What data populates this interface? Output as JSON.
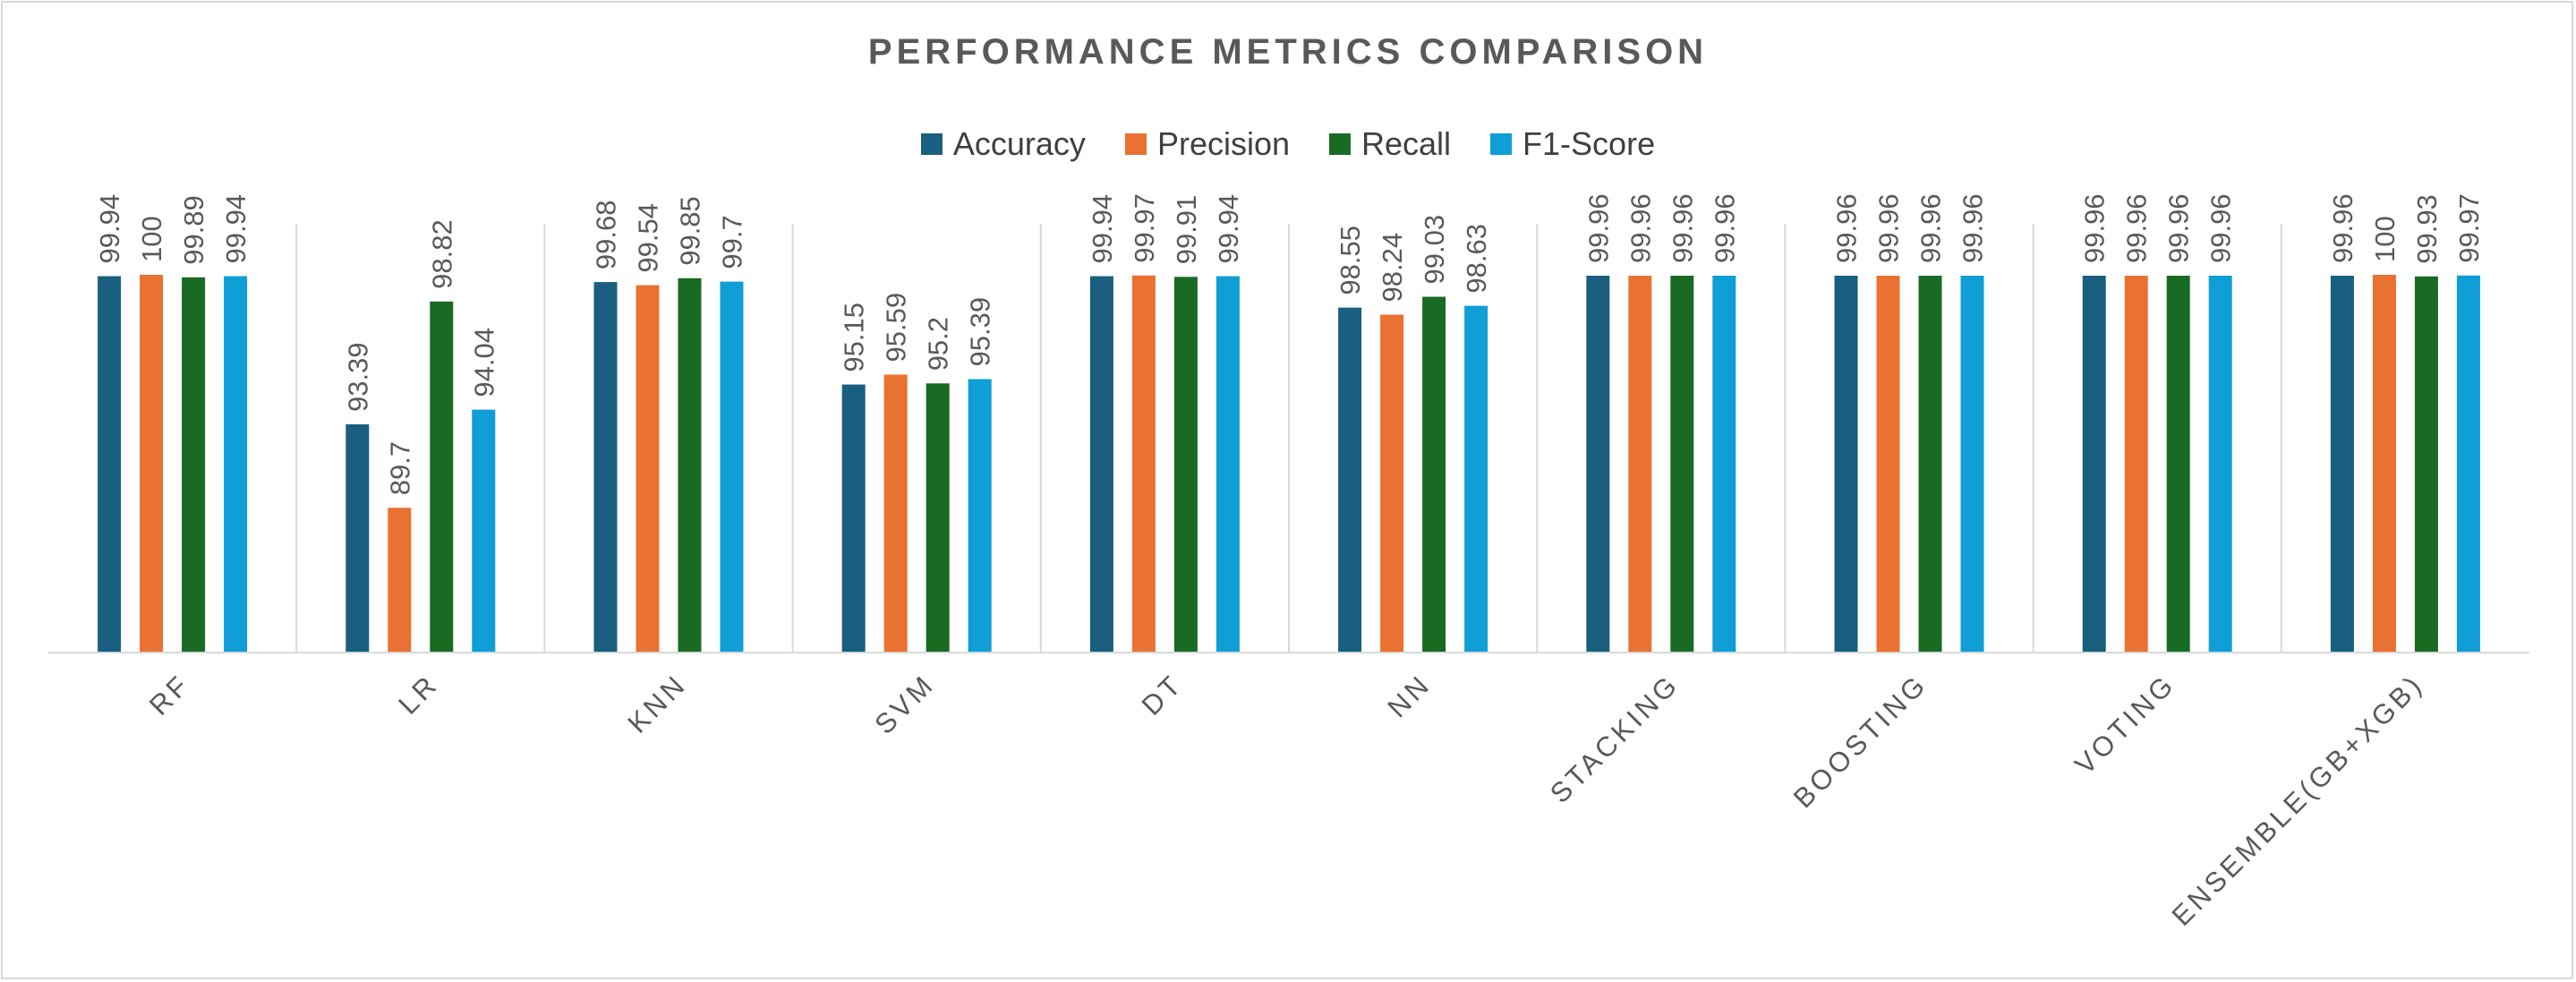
{
  "chart_data": {
    "type": "bar",
    "title": "PERFORMANCE METRICS COMPARISON",
    "categories": [
      "RF",
      "LR",
      "KNN",
      "SVM",
      "DT",
      "NN",
      "STACKING",
      "BOOSTING",
      "VOTING",
      "ENSEMBLE(GB+XGB)"
    ],
    "series": [
      {
        "name": "Accuracy",
        "color": "#1a5e80",
        "values": [
          99.94,
          93.39,
          99.68,
          95.15,
          99.94,
          98.55,
          99.96,
          99.96,
          99.96,
          99.96
        ]
      },
      {
        "name": "Precision",
        "color": "#e97132",
        "values": [
          100,
          89.7,
          99.54,
          95.59,
          99.97,
          98.24,
          99.96,
          99.96,
          99.96,
          100
        ]
      },
      {
        "name": "Recall",
        "color": "#196b24",
        "values": [
          99.89,
          98.82,
          99.85,
          95.2,
          99.91,
          99.03,
          99.96,
          99.96,
          99.96,
          99.93
        ]
      },
      {
        "name": "F1-Score",
        "color": "#0f9ed5",
        "values": [
          99.94,
          94.04,
          99.7,
          95.39,
          99.94,
          98.63,
          99.96,
          99.96,
          99.96,
          99.97
        ]
      }
    ],
    "ylim": [
      83.3,
      100
    ],
    "grid": "vertical category separators",
    "legend": "top-center",
    "data_labels": true
  }
}
